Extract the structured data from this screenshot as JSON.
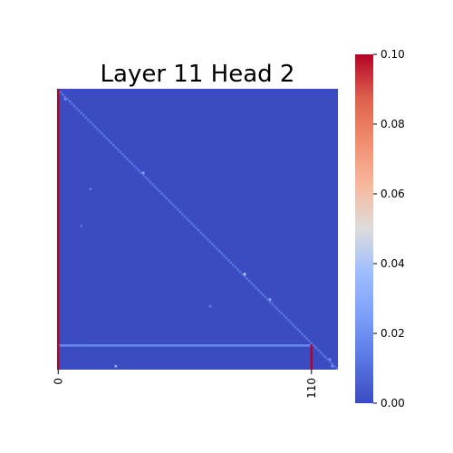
{
  "chart_data": {
    "type": "heatmap",
    "title": "Layer 11 Head 2",
    "xlabel": "",
    "ylabel": "",
    "grid": false,
    "n": 122,
    "x_tick_labels": [
      "0",
      "110"
    ],
    "x_tick_values": [
      0,
      110
    ],
    "colorbar": {
      "colormap": "coolwarm",
      "vmin": 0.0,
      "vmax": 0.1,
      "tick_values": [
        0.0,
        0.02,
        0.04,
        0.06,
        0.08,
        0.1
      ],
      "tick_labels": [
        "0.00",
        "0.02",
        "0.04",
        "0.06",
        "0.08",
        "0.10"
      ]
    },
    "background_value": 0.0,
    "column_highlights": [
      {
        "column": 0,
        "rows": [
          0,
          121
        ],
        "value": 0.1
      },
      {
        "column": 110,
        "rows": [
          111,
          121
        ],
        "value": 0.1
      }
    ],
    "row_highlights": [
      {
        "row": 111,
        "columns": [
          0,
          110
        ],
        "value": 0.018
      }
    ],
    "diagonal": {
      "value": 0.012
    },
    "notable_cells": [
      {
        "row": 4,
        "column": 3,
        "value": 0.02
      },
      {
        "row": 36,
        "column": 37,
        "value": 0.025
      },
      {
        "row": 43,
        "column": 14,
        "value": 0.015
      },
      {
        "row": 59,
        "column": 10,
        "value": 0.012
      },
      {
        "row": 80,
        "column": 81,
        "value": 0.045
      },
      {
        "row": 91,
        "column": 92,
        "value": 0.03
      },
      {
        "row": 94,
        "column": 66,
        "value": 0.015
      },
      {
        "row": 117,
        "column": 118,
        "value": 0.02
      },
      {
        "row": 120,
        "column": 25,
        "value": 0.035
      },
      {
        "row": 120,
        "column": 119,
        "value": 0.02
      }
    ]
  }
}
